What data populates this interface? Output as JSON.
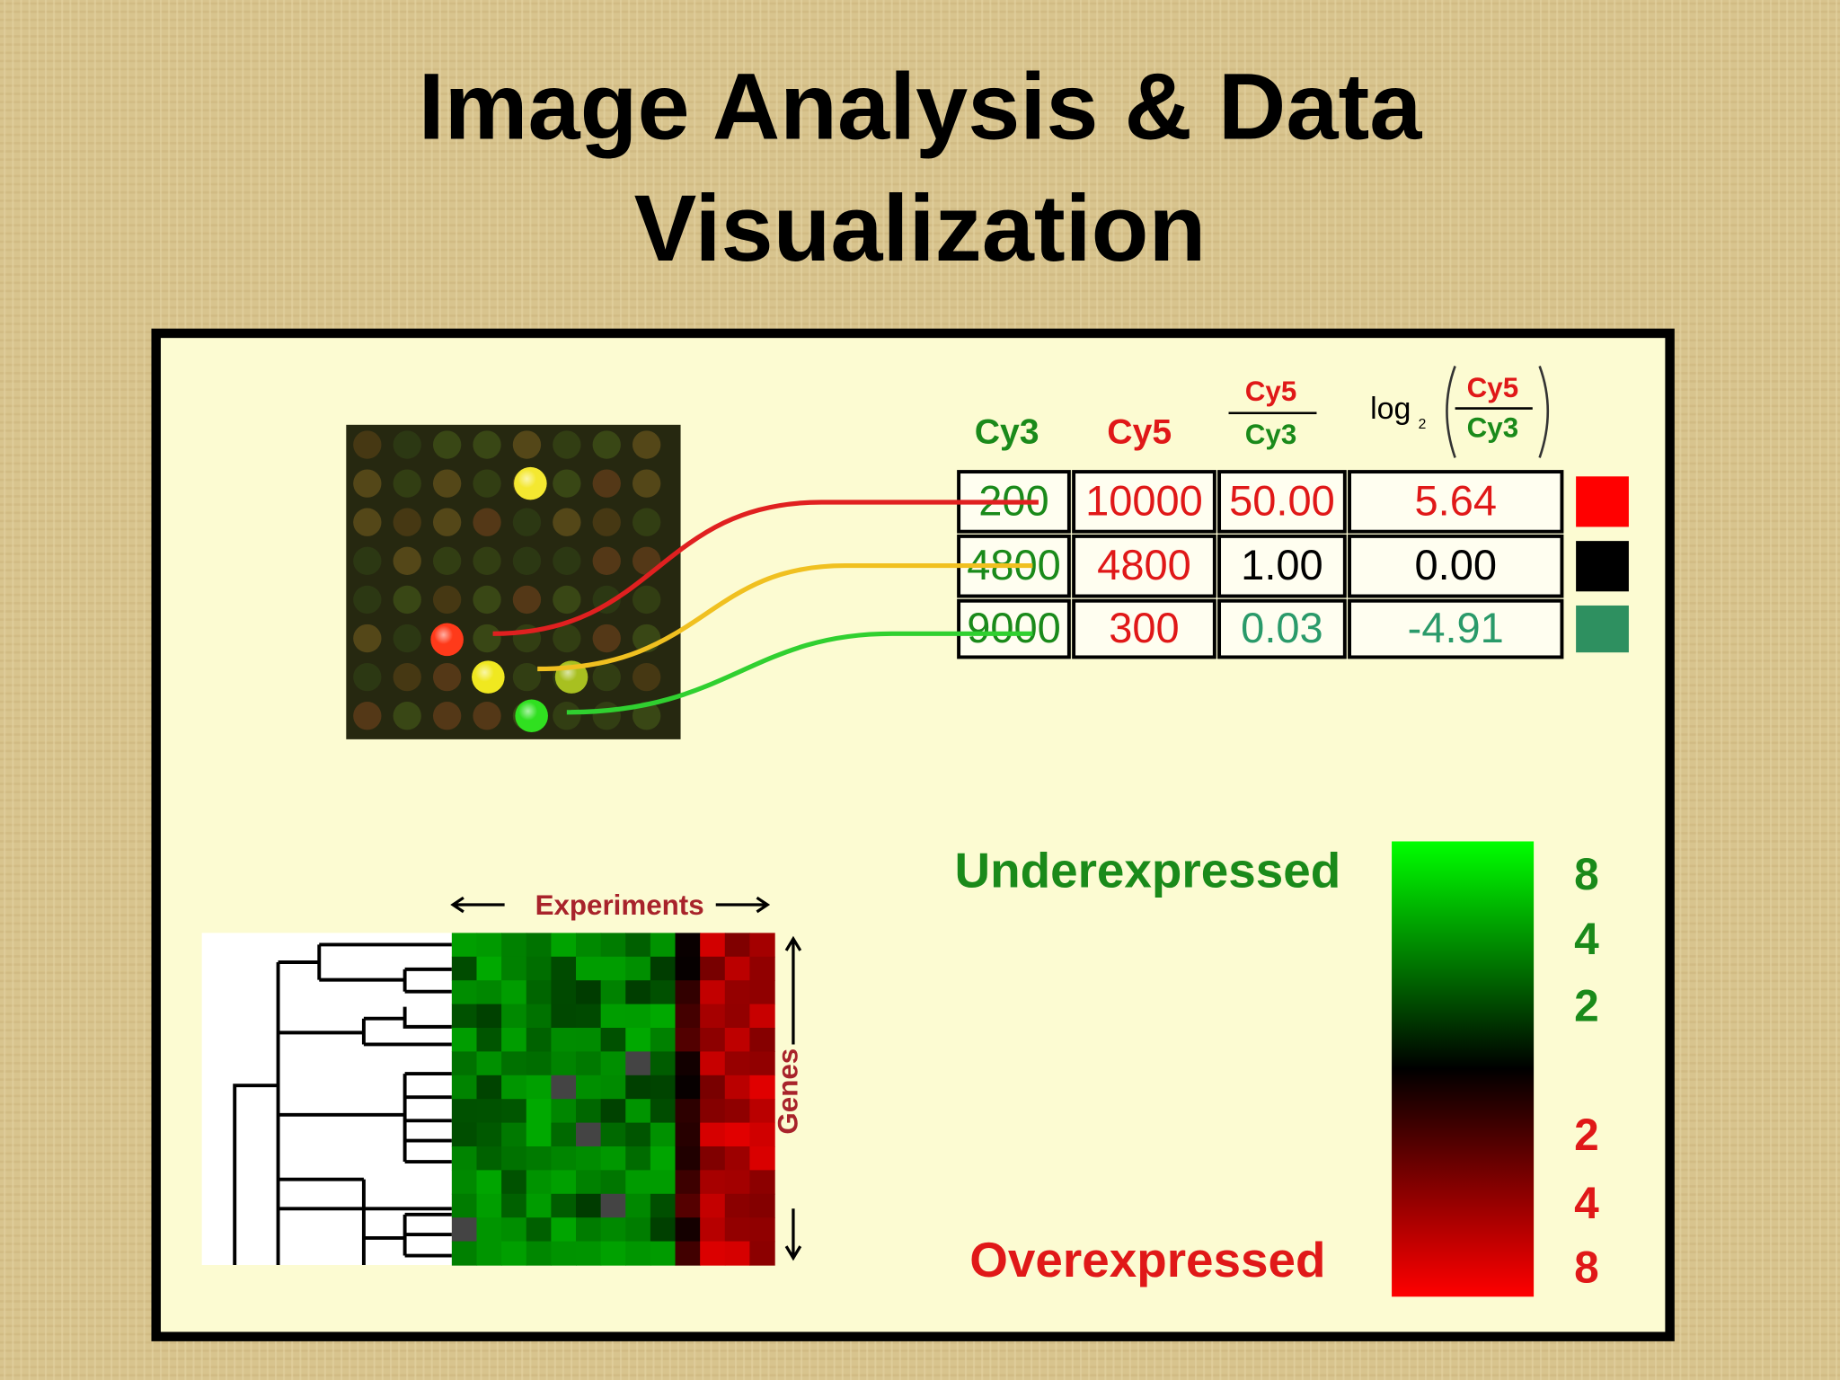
{
  "title": [
    "Image Analysis & Data",
    "Visualization"
  ],
  "table": {
    "headers": [
      "Cy3",
      "Cy5"
    ],
    "ratio_header": {
      "numerator": "Cy5",
      "denominator": "Cy3"
    },
    "log_header": {
      "prefix": "log",
      "subscript": "2",
      "numerator": "Cy5",
      "denominator": "Cy3"
    },
    "rows": [
      [
        "200",
        "10000",
        "50.00",
        "5.64"
      ],
      [
        "4800",
        "4800",
        "1.00",
        "0.00"
      ],
      [
        "9000",
        "300",
        "0.03",
        "-4.91"
      ]
    ]
  },
  "heatmap": {
    "x_label": "Experiments",
    "y_label": "Genes"
  },
  "scale": {
    "top_label": "Underexpressed",
    "bottom_label": "Overexpressed",
    "green_ticks": [
      "8",
      "4",
      "2"
    ],
    "red_ticks": [
      "2",
      "4",
      "8"
    ]
  }
}
